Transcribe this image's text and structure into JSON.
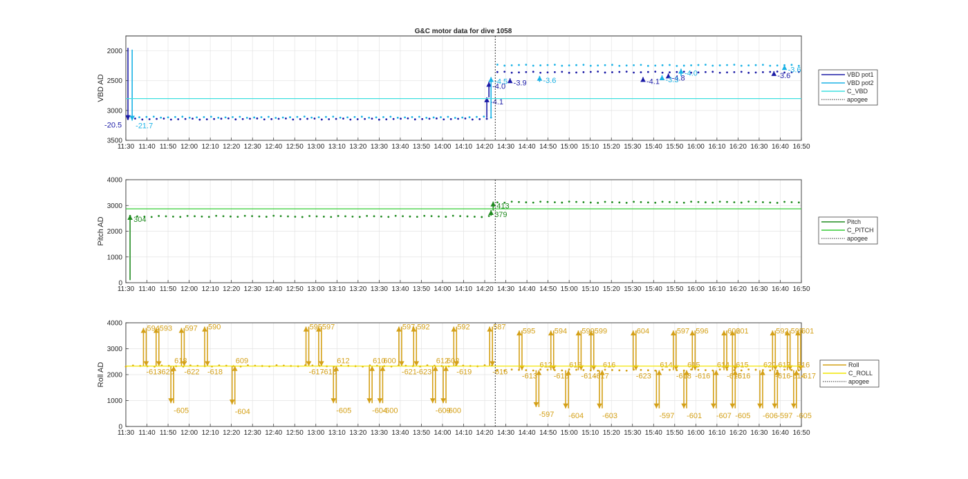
{
  "chart_data": [
    {
      "type": "line",
      "title": "G&C motor data for dive 1058",
      "ylabel": "VBD AD",
      "x_unit": "time",
      "xlim": [
        "11:30",
        "16:50"
      ],
      "ylim": [
        3500,
        1750
      ],
      "y_reversed": true,
      "yticks": [
        2000,
        2500,
        3000,
        3500
      ],
      "xticks": [
        "11:30",
        "11:40",
        "11:50",
        "12:00",
        "12:10",
        "12:20",
        "12:30",
        "12:40",
        "12:50",
        "13:00",
        "13:10",
        "13:20",
        "13:30",
        "13:40",
        "13:50",
        "14:00",
        "14:10",
        "14:20",
        "14:30",
        "14:40",
        "14:50",
        "15:00",
        "15:10",
        "15:20",
        "15:30",
        "15:40",
        "15:50",
        "16:00",
        "16:10",
        "16:20",
        "16:30",
        "16:40",
        "16:50"
      ],
      "grid": true,
      "legend_position": "outside-right",
      "legend": [
        {
          "name": "VBD pot1",
          "color": "#1a1aa6",
          "style": "solid"
        },
        {
          "name": "VBD pot2",
          "color": "#1ab2e6",
          "style": "solid"
        },
        {
          "name": "C_VBD",
          "color": "#3fe0e0",
          "style": "solid"
        },
        {
          "name": "apogee",
          "color": "#333333",
          "style": "dotted"
        }
      ],
      "series": [
        {
          "name": "VBD pot1",
          "color": "#1a1aa6",
          "spikes": [
            {
              "t": "11:31",
              "from": 3100,
              "to": 1950
            }
          ],
          "steady": [
            {
              "t_start": "11:31",
              "t_end": "14:24",
              "y": 3140
            },
            {
              "t_start": "14:26",
              "t_end": "16:50",
              "y": 2355
            }
          ],
          "moves": [
            {
              "t": "11:31",
              "from": 3090,
              "to": 3160,
              "label": "-20.5"
            },
            {
              "t": "14:21",
              "from": 3120,
              "to": 2780,
              "label": "-4.1"
            },
            {
              "t": "14:22",
              "from": 2780,
              "to": 2520,
              "label": "-4.0"
            },
            {
              "t": "14:32",
              "from": 2520,
              "to": 2460,
              "label": "-3.9"
            },
            {
              "t": "15:35",
              "from": 2520,
              "to": 2440,
              "label": "-4.1"
            },
            {
              "t": "15:47",
              "from": 2440,
              "to": 2380,
              "label": "-4.8"
            },
            {
              "t": "16:37",
              "from": 2400,
              "to": 2340,
              "label": "-3.6"
            }
          ]
        },
        {
          "name": "VBD pot2",
          "color": "#1ab2e6",
          "spikes": [
            {
              "t": "11:33",
              "from": 3100,
              "to": 1980
            }
          ],
          "steady": [
            {
              "t_start": "11:33",
              "t_end": "14:24",
              "y": 3110
            },
            {
              "t_start": "14:26",
              "t_end": "16:50",
              "y": 2240
            }
          ],
          "moves": [
            {
              "t": "11:33",
              "from": 3100,
              "to": 3170,
              "label": "-21.7"
            },
            {
              "t": "14:23",
              "from": 3120,
              "to": 2440,
              "label": "-4.5"
            },
            {
              "t": "14:46",
              "from": 2520,
              "to": 2420,
              "label": "-3.6"
            },
            {
              "t": "15:44",
              "from": 2460,
              "to": 2410,
              "label": "-3.3"
            },
            {
              "t": "15:53",
              "from": 2420,
              "to": 2300,
              "label": "-4.0"
            },
            {
              "t": "16:42",
              "from": 2300,
              "to": 2240,
              "label": "-3.6"
            }
          ]
        },
        {
          "name": "C_VBD",
          "color": "#3fe0e0",
          "constant": 2800
        }
      ],
      "apogee": "14:25"
    },
    {
      "type": "line",
      "ylabel": "Pitch AD",
      "x_unit": "time",
      "xlim": [
        "11:30",
        "16:50"
      ],
      "ylim": [
        0,
        4000
      ],
      "yticks": [
        0,
        1000,
        2000,
        3000,
        4000
      ],
      "xticks": [
        "11:30",
        "11:40",
        "11:50",
        "12:00",
        "12:10",
        "12:20",
        "12:30",
        "12:40",
        "12:50",
        "13:00",
        "13:10",
        "13:20",
        "13:30",
        "13:40",
        "13:50",
        "14:00",
        "14:10",
        "14:20",
        "14:30",
        "14:40",
        "14:50",
        "15:00",
        "15:10",
        "15:20",
        "15:30",
        "15:40",
        "15:50",
        "16:00",
        "16:10",
        "16:20",
        "16:30",
        "16:40",
        "16:50"
      ],
      "grid": true,
      "legend_position": "outside-right",
      "legend": [
        {
          "name": "Pitch",
          "color": "#1f8a1f",
          "style": "solid"
        },
        {
          "name": "C_PITCH",
          "color": "#33cc33",
          "style": "solid"
        },
        {
          "name": "apogee",
          "color": "#333333",
          "style": "dotted"
        }
      ],
      "series": [
        {
          "name": "Pitch",
          "color": "#1f8a1f",
          "spikes": [
            {
              "t": "11:32",
              "from": 2550,
              "to": 100
            }
          ],
          "steady": [
            {
              "t_start": "11:32",
              "t_end": "14:24",
              "y": 2570
            },
            {
              "t_start": "14:26",
              "t_end": "16:50",
              "y": 3120
            }
          ],
          "moves": [
            {
              "t": "11:32",
              "from": 2550,
              "to": 2630,
              "label": "304"
            },
            {
              "t": "14:23",
              "from": 2600,
              "to": 2820,
              "label": "379"
            },
            {
              "t": "14:24",
              "from": 2800,
              "to": 3150,
              "label": "413"
            }
          ]
        },
        {
          "name": "C_PITCH",
          "color": "#33cc33",
          "constant": 2870
        }
      ],
      "apogee": "14:25"
    },
    {
      "type": "line",
      "ylabel": "Roll AD",
      "x_unit": "time",
      "xlim": [
        "11:30",
        "16:50"
      ],
      "ylim": [
        0,
        4000
      ],
      "yticks": [
        0,
        1000,
        2000,
        3000,
        4000
      ],
      "xticks": [
        "11:30",
        "11:40",
        "11:50",
        "12:00",
        "12:10",
        "12:20",
        "12:30",
        "12:40",
        "12:50",
        "13:00",
        "13:10",
        "13:20",
        "13:30",
        "13:40",
        "13:50",
        "14:00",
        "14:10",
        "14:20",
        "14:30",
        "14:40",
        "14:50",
        "15:00",
        "15:10",
        "15:20",
        "15:30",
        "15:40",
        "15:50",
        "16:00",
        "16:10",
        "16:20",
        "16:30",
        "16:40",
        "16:50"
      ],
      "grid": true,
      "legend_position": "outside-right",
      "legend": [
        {
          "name": "Roll",
          "color": "#d4a017",
          "style": "solid"
        },
        {
          "name": "C_ROLL",
          "color": "#f2e600",
          "style": "solid"
        },
        {
          "name": "apogee",
          "color": "#333333",
          "style": "dotted"
        }
      ],
      "series": [
        {
          "name": "Roll",
          "color": "#d4a017",
          "steady": [
            {
              "t_start": "11:30",
              "t_end": "14:24",
              "y": 2330
            },
            {
              "t_start": "14:26",
              "t_end": "16:50",
              "y": 2170
            }
          ],
          "excursions": [
            {
              "t": "11:39",
              "peak": 3800,
              "up_label": "594",
              "down_label": "-613"
            },
            {
              "t": "11:45",
              "peak": 3800,
              "up_label": "593",
              "down_label": "-626"
            },
            {
              "t": "11:52",
              "peak": 900,
              "up_label": "618",
              "down_label": "-605"
            },
            {
              "t": "11:57",
              "peak": 3800,
              "up_label": "597",
              "down_label": "-622"
            },
            {
              "t": "12:08",
              "peak": 3850,
              "up_label": "590",
              "down_label": "-618"
            },
            {
              "t": "12:21",
              "peak": 850,
              "up_label": "609",
              "down_label": "-604"
            },
            {
              "t": "12:56",
              "peak": 3850,
              "up_label": "595",
              "down_label": "-617"
            },
            {
              "t": "13:02",
              "peak": 3850,
              "up_label": "597",
              "down_label": "-618"
            },
            {
              "t": "13:09",
              "peak": 900,
              "up_label": "612",
              "down_label": "-605"
            },
            {
              "t": "13:26",
              "peak": 900,
              "up_label": "610",
              "down_label": "-604"
            },
            {
              "t": "13:31",
              "peak": 900,
              "up_label": "600",
              "down_label": "-600"
            },
            {
              "t": "13:40",
              "peak": 3850,
              "up_label": "597",
              "down_label": "-621"
            },
            {
              "t": "13:47",
              "peak": 3850,
              "up_label": "592",
              "down_label": "-623"
            },
            {
              "t": "13:56",
              "peak": 900,
              "up_label": "612",
              "down_label": "-609"
            },
            {
              "t": "14:01",
              "peak": 900,
              "up_label": "602",
              "down_label": "-600"
            },
            {
              "t": "14:06",
              "peak": 3850,
              "up_label": "592",
              "down_label": "-619"
            },
            {
              "t": "14:23",
              "peak": 3850,
              "up_label": "587",
              "down_label": "-616"
            },
            {
              "t": "14:37",
              "peak": 3700,
              "up_label": "595",
              "down_label": "-613"
            },
            {
              "t": "14:45",
              "peak": 750,
              "up_label": "612",
              "down_label": "-597"
            },
            {
              "t": "14:52",
              "peak": 3700,
              "up_label": "594",
              "down_label": "-618"
            },
            {
              "t": "14:59",
              "peak": 700,
              "up_label": "616",
              "down_label": "-604"
            },
            {
              "t": "15:05",
              "peak": 3700,
              "up_label": "599",
              "down_label": "-614"
            },
            {
              "t": "15:11",
              "peak": 3700,
              "up_label": "599",
              "down_label": "-617"
            },
            {
              "t": "15:15",
              "peak": 700,
              "up_label": "616",
              "down_label": "-603"
            },
            {
              "t": "15:31",
              "peak": 3700,
              "up_label": "604",
              "down_label": "-623"
            },
            {
              "t": "15:42",
              "peak": 700,
              "up_label": "614",
              "down_label": "-597"
            },
            {
              "t": "15:50",
              "peak": 3700,
              "up_label": "597",
              "down_label": "-618"
            },
            {
              "t": "15:55",
              "peak": 700,
              "up_label": "615",
              "down_label": "-601"
            },
            {
              "t": "15:59",
              "peak": 3700,
              "up_label": "596",
              "down_label": "-616"
            },
            {
              "t": "16:09",
              "peak": 700,
              "up_label": "614",
              "down_label": "-607"
            },
            {
              "t": "16:14",
              "peak": 3700,
              "up_label": "602",
              "down_label": "-615"
            },
            {
              "t": "16:18",
              "peak": 3700,
              "up_label": "601",
              "down_label": "-616"
            },
            {
              "t": "16:18",
              "peak": 700,
              "up_label": "615",
              "down_label": "-605"
            },
            {
              "t": "16:31",
              "peak": 700,
              "up_label": "620",
              "down_label": "-606"
            },
            {
              "t": "16:37",
              "peak": 3700,
              "up_label": "592",
              "down_label": "-616"
            },
            {
              "t": "16:38",
              "peak": 700,
              "up_label": "617",
              "down_label": "-597"
            },
            {
              "t": "16:44",
              "peak": 3700,
              "up_label": "595",
              "down_label": "-614"
            },
            {
              "t": "16:47",
              "peak": 700,
              "up_label": "616",
              "down_label": "-605"
            },
            {
              "t": "16:49",
              "peak": 3700,
              "up_label": "601",
              "down_label": "-617"
            }
          ]
        },
        {
          "name": "C_ROLL",
          "color": "#f2e600",
          "constant": 2330
        }
      ],
      "apogee": "14:25"
    }
  ]
}
